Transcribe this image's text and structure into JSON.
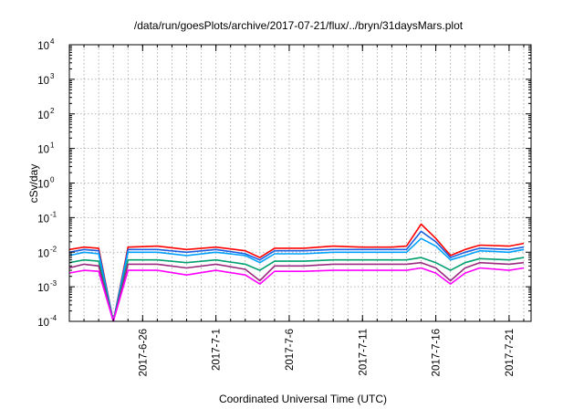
{
  "chart_data": {
    "type": "line",
    "title": "/data/run/goesPlots/archive/2017-07-21/flux/../bryn/31daysMars.plot",
    "xlabel": "Coordinated Universal Time (UTC)",
    "ylabel": "cSv/day",
    "yscale": "log",
    "ylim": [
      0.0001,
      10000
    ],
    "xlim": [
      "2017-06-21",
      "2017-07-22 12:00"
    ],
    "grid": true,
    "x_ticks": [
      "2017-6-26",
      "2017-7-1",
      "2017-7-6",
      "2017-7-11",
      "2017-7-16",
      "2017-7-21"
    ],
    "y_ticks": [
      {
        "base": "10",
        "exp": "-4"
      },
      {
        "base": "10",
        "exp": "-3"
      },
      {
        "base": "10",
        "exp": "-2"
      },
      {
        "base": "10",
        "exp": "-1"
      },
      {
        "base": "10",
        "exp": "0"
      },
      {
        "base": "10",
        "exp": "1"
      },
      {
        "base": "10",
        "exp": "2"
      },
      {
        "base": "10",
        "exp": "3"
      },
      {
        "base": "10",
        "exp": "4"
      }
    ],
    "colors": [
      "#ff0000",
      "#1a5fe0",
      "#00a0ff",
      "#00a070",
      "#9a2a80",
      "#ff00ff",
      "#e6c000"
    ],
    "series": [
      {
        "color": "#ff0000",
        "x": [
          "2017-06-21",
          "2017-06-22",
          "2017-06-23",
          "2017-06-24",
          "2017-06-25",
          "2017-06-27",
          "2017-06-29",
          "2017-07-01",
          "2017-07-03",
          "2017-07-04",
          "2017-07-05",
          "2017-07-07",
          "2017-07-09",
          "2017-07-11",
          "2017-07-13",
          "2017-07-14",
          "2017-07-15",
          "2017-07-16",
          "2017-07-17",
          "2017-07-18",
          "2017-07-19",
          "2017-07-21",
          "2017-07-22"
        ],
        "values": [
          0.012,
          0.014,
          0.013,
          0.0001,
          0.014,
          0.015,
          0.012,
          0.014,
          0.011,
          0.007,
          0.013,
          0.013,
          0.015,
          0.014,
          0.014,
          0.015,
          0.065,
          0.025,
          0.008,
          0.012,
          0.016,
          0.015,
          0.018
        ]
      },
      {
        "color": "#1a5fe0",
        "x": [
          "2017-06-21",
          "2017-06-22",
          "2017-06-23",
          "2017-06-24",
          "2017-06-25",
          "2017-06-27",
          "2017-06-29",
          "2017-07-01",
          "2017-07-03",
          "2017-07-04",
          "2017-07-05",
          "2017-07-07",
          "2017-07-09",
          "2017-07-11",
          "2017-07-13",
          "2017-07-14",
          "2017-07-15",
          "2017-07-16",
          "2017-07-17",
          "2017-07-18",
          "2017-07-19",
          "2017-07-21",
          "2017-07-22"
        ],
        "values": [
          0.01,
          0.012,
          0.011,
          0.0001,
          0.012,
          0.012,
          0.01,
          0.012,
          0.009,
          0.006,
          0.011,
          0.011,
          0.012,
          0.012,
          0.012,
          0.012,
          0.04,
          0.02,
          0.007,
          0.01,
          0.013,
          0.012,
          0.014
        ]
      },
      {
        "color": "#00a0ff",
        "x": [
          "2017-06-21",
          "2017-06-22",
          "2017-06-23",
          "2017-06-24",
          "2017-06-25",
          "2017-06-27",
          "2017-06-29",
          "2017-07-01",
          "2017-07-03",
          "2017-07-04",
          "2017-07-05",
          "2017-07-07",
          "2017-07-09",
          "2017-07-11",
          "2017-07-13",
          "2017-07-14",
          "2017-07-15",
          "2017-07-16",
          "2017-07-17",
          "2017-07-18",
          "2017-07-19",
          "2017-07-21",
          "2017-07-22"
        ],
        "values": [
          0.008,
          0.01,
          0.009,
          0.0001,
          0.01,
          0.01,
          0.008,
          0.01,
          0.008,
          0.005,
          0.009,
          0.009,
          0.01,
          0.01,
          0.01,
          0.01,
          0.025,
          0.015,
          0.006,
          0.008,
          0.011,
          0.01,
          0.012
        ]
      },
      {
        "color": "#00a070",
        "x": [
          "2017-06-21",
          "2017-06-22",
          "2017-06-23",
          "2017-06-24",
          "2017-06-25",
          "2017-06-27",
          "2017-06-29",
          "2017-07-01",
          "2017-07-03",
          "2017-07-04",
          "2017-07-05",
          "2017-07-07",
          "2017-07-09",
          "2017-07-11",
          "2017-07-13",
          "2017-07-14",
          "2017-07-15",
          "2017-07-16",
          "2017-07-17",
          "2017-07-18",
          "2017-07-19",
          "2017-07-21",
          "2017-07-22"
        ],
        "values": [
          0.005,
          0.006,
          0.0055,
          0.0001,
          0.006,
          0.006,
          0.005,
          0.006,
          0.0045,
          0.003,
          0.0055,
          0.0055,
          0.006,
          0.006,
          0.006,
          0.006,
          0.007,
          0.005,
          0.003,
          0.005,
          0.0065,
          0.006,
          0.007
        ]
      },
      {
        "color": "#9a2a80",
        "x": [
          "2017-06-21",
          "2017-06-22",
          "2017-06-23",
          "2017-06-24",
          "2017-06-25",
          "2017-06-27",
          "2017-06-29",
          "2017-07-01",
          "2017-07-03",
          "2017-07-04",
          "2017-07-05",
          "2017-07-07",
          "2017-07-09",
          "2017-07-11",
          "2017-07-13",
          "2017-07-14",
          "2017-07-15",
          "2017-07-16",
          "2017-07-17",
          "2017-07-18",
          "2017-07-19",
          "2017-07-21",
          "2017-07-22"
        ],
        "values": [
          0.0035,
          0.0045,
          0.004,
          0.0001,
          0.0045,
          0.0045,
          0.0035,
          0.0045,
          0.0032,
          0.0015,
          0.004,
          0.004,
          0.0045,
          0.0045,
          0.0045,
          0.0045,
          0.005,
          0.0035,
          0.0015,
          0.0035,
          0.005,
          0.0045,
          0.005
        ]
      },
      {
        "color": "#ff00ff",
        "x": [
          "2017-06-21",
          "2017-06-22",
          "2017-06-23",
          "2017-06-24",
          "2017-06-25",
          "2017-06-27",
          "2017-06-29",
          "2017-07-01",
          "2017-07-03",
          "2017-07-04",
          "2017-07-05",
          "2017-07-07",
          "2017-07-09",
          "2017-07-11",
          "2017-07-13",
          "2017-07-14",
          "2017-07-15",
          "2017-07-16",
          "2017-07-17",
          "2017-07-18",
          "2017-07-19",
          "2017-07-21",
          "2017-07-22"
        ],
        "values": [
          0.0025,
          0.003,
          0.0028,
          0.0001,
          0.003,
          0.003,
          0.0022,
          0.003,
          0.0022,
          0.0012,
          0.0028,
          0.0028,
          0.003,
          0.003,
          0.003,
          0.003,
          0.0035,
          0.0025,
          0.0012,
          0.0025,
          0.0035,
          0.003,
          0.0035
        ]
      }
    ]
  }
}
